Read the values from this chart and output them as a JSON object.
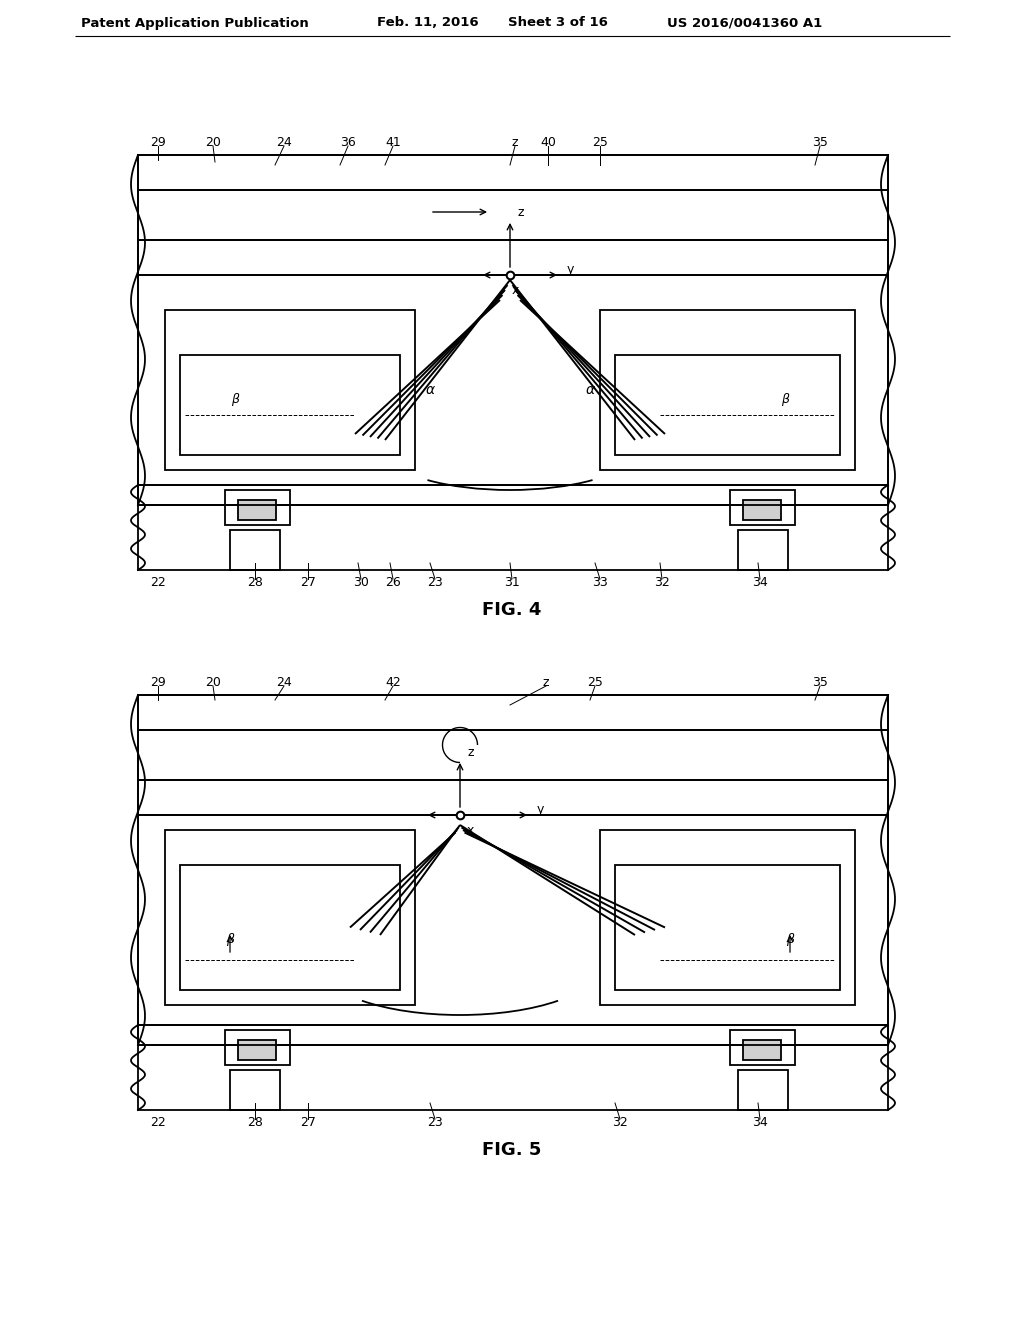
{
  "bg_color": "#ffffff",
  "header_text": "Patent Application Publication",
  "header_date": "Feb. 11, 2016",
  "header_sheet": "Sheet 3 of 16",
  "header_patent": "US 2016/0041360 A1",
  "fig4_caption": "FIG. 4",
  "fig5_caption": "FIG. 5",
  "lc": "#000000",
  "lw": 1.3
}
